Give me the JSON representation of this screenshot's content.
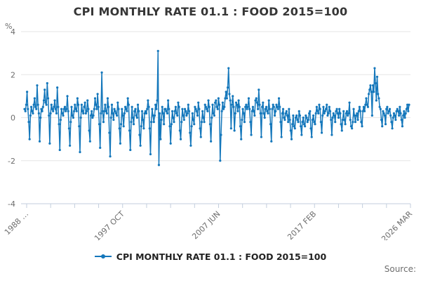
{
  "title": "CPI MONTHLY RATE 01.1 : FOOD 2015=100",
  "legend": {
    "label": "CPI MONTHLY RATE 01.1 : FOOD 2015=100"
  },
  "source_label": "Source:",
  "colors": {
    "line": "#1477bb",
    "grid": "#e6e6e6",
    "axis": "#c3cedd",
    "tick_text": "#6d6d6d",
    "title_text": "#363636",
    "legend_text": "#222222"
  },
  "chart_data": {
    "type": "line",
    "title": "CPI MONTHLY RATE 01.1 : FOOD 2015=100",
    "xlabel": "",
    "ylabel": "%",
    "ylim": [
      -4,
      4
    ],
    "y_ticks": [
      4,
      2,
      0,
      -2,
      -4
    ],
    "x_tick_labels": [
      "1988 …",
      "1997 OCT",
      "2007 JUN",
      "2017 FEB",
      "2026 MAR"
    ],
    "x_start": "1988 JAN",
    "x_end": "2026 MAR",
    "frequency": "monthly",
    "grid": true,
    "legend_position": "bottom",
    "marker": "circle",
    "series": [
      {
        "name": "CPI MONTHLY RATE 01.1 : FOOD 2015=100",
        "values": [
          0.4,
          0.3,
          0.6,
          1.2,
          0.4,
          -0.2,
          -1.0,
          0.1,
          0.5,
          0.3,
          0.2,
          0.6,
          0.9,
          0.5,
          0.4,
          1.5,
          0.6,
          0.2,
          -1.1,
          0.0,
          0.4,
          0.3,
          0.5,
          0.8,
          1.3,
          0.7,
          0.6,
          1.6,
          0.9,
          0.1,
          -1.2,
          0.2,
          0.6,
          0.4,
          0.3,
          0.5,
          0.8,
          0.4,
          0.2,
          1.4,
          0.5,
          -0.3,
          -1.5,
          -0.1,
          0.4,
          0.2,
          0.1,
          0.4,
          0.5,
          0.3,
          0.4,
          1.0,
          0.3,
          -0.5,
          -1.3,
          -0.2,
          0.5,
          0.1,
          0.0,
          0.3,
          0.6,
          0.4,
          0.3,
          0.9,
          0.6,
          -0.4,
          -1.6,
          0.0,
          0.6,
          0.3,
          0.2,
          0.5,
          0.7,
          0.2,
          0.3,
          0.8,
          0.4,
          -0.6,
          -1.1,
          0.1,
          0.3,
          0.0,
          0.1,
          0.4,
          0.9,
          0.6,
          0.4,
          1.1,
          0.5,
          -0.3,
          -1.4,
          0.2,
          2.1,
          0.3,
          -0.2,
          0.3,
          0.6,
          0.3,
          0.2,
          0.9,
          0.5,
          -0.7,
          -1.8,
          0.0,
          0.6,
          0.2,
          -0.1,
          0.4,
          0.3,
          0.2,
          0.1,
          0.7,
          0.4,
          -0.5,
          -1.2,
          -0.3,
          0.4,
          0.1,
          -0.4,
          0.2,
          0.5,
          0.4,
          0.3,
          0.9,
          0.6,
          -0.6,
          -1.5,
          -0.2,
          0.5,
          0.0,
          -0.3,
          0.3,
          0.4,
          0.1,
          0.0,
          0.6,
          0.3,
          -0.8,
          -1.3,
          -0.4,
          0.3,
          -0.1,
          -0.5,
          0.2,
          0.3,
          0.2,
          0.4,
          0.8,
          0.5,
          -0.5,
          -1.7,
          -0.2,
          0.4,
          0.1,
          -0.2,
          0.1,
          0.6,
          0.4,
          0.8,
          3.1,
          -2.2,
          0.2,
          -1.0,
          -0.1,
          0.5,
          0.2,
          -0.3,
          0.4,
          0.4,
          0.3,
          0.2,
          0.8,
          0.4,
          -0.4,
          -1.2,
          -0.3,
          0.3,
          0.0,
          -0.2,
          0.3,
          0.5,
          0.2,
          0.1,
          0.7,
          0.5,
          -0.6,
          -1.0,
          -0.2,
          0.4,
          0.1,
          -0.1,
          0.4,
          0.3,
          0.1,
          0.2,
          0.6,
          0.3,
          -0.7,
          -1.3,
          -0.4,
          0.2,
          -0.1,
          -0.3,
          0.5,
          0.4,
          0.3,
          0.1,
          0.7,
          0.4,
          -0.5,
          -0.9,
          -0.2,
          0.3,
          0.0,
          -0.2,
          0.6,
          0.5,
          0.4,
          0.3,
          0.8,
          0.5,
          -0.3,
          -1.1,
          0.0,
          0.6,
          0.2,
          0.1,
          0.7,
          0.8,
          0.5,
          0.4,
          0.9,
          0.6,
          -2.0,
          -0.8,
          0.3,
          0.7,
          0.4,
          0.5,
          0.9,
          1.2,
          0.9,
          1.4,
          2.3,
          1.1,
          0.8,
          -0.5,
          0.6,
          1.0,
          0.5,
          -0.6,
          0.2,
          0.7,
          0.6,
          0.3,
          0.8,
          0.5,
          -0.4,
          -1.0,
          -0.1,
          0.4,
          0.2,
          -0.2,
          0.5,
          0.6,
          0.4,
          0.5,
          0.9,
          0.4,
          -0.2,
          -0.8,
          0.3,
          0.5,
          0.3,
          0.1,
          0.8,
          0.9,
          0.7,
          0.4,
          1.3,
          0.6,
          0.2,
          -0.9,
          0.5,
          0.7,
          0.2,
          0.0,
          0.4,
          0.5,
          0.3,
          0.2,
          0.8,
          0.4,
          -0.3,
          -1.1,
          0.4,
          0.6,
          0.5,
          0.1,
          0.3,
          0.6,
          0.5,
          0.4,
          0.9,
          0.5,
          -0.2,
          -0.9,
          0.2,
          0.4,
          0.0,
          -0.1,
          0.2,
          0.3,
          0.1,
          -0.2,
          0.4,
          -0.1,
          -0.6,
          -1.0,
          -0.3,
          0.1,
          -0.4,
          -0.5,
          0.0,
          0.1,
          -0.1,
          -0.2,
          0.3,
          0.1,
          -0.4,
          -0.8,
          -0.2,
          0.0,
          -0.3,
          -0.4,
          0.1,
          0.0,
          -0.2,
          -0.1,
          0.2,
          0.3,
          -0.5,
          -0.9,
          -0.1,
          0.1,
          -0.2,
          -0.3,
          0.2,
          0.5,
          0.3,
          0.2,
          0.6,
          0.4,
          -0.2,
          -0.7,
          0.1,
          0.5,
          0.2,
          0.3,
          0.4,
          0.6,
          0.1,
          0.2,
          0.5,
          0.3,
          -0.1,
          -0.8,
          0.0,
          0.2,
          0.1,
          -0.2,
          0.3,
          0.4,
          0.2,
          0.0,
          0.4,
          0.2,
          -0.3,
          -0.6,
          -0.1,
          0.3,
          -0.1,
          -0.3,
          0.2,
          0.3,
          0.1,
          0.2,
          0.7,
          -0.1,
          -0.4,
          -0.5,
          -0.2,
          0.4,
          0.1,
          -0.2,
          0.1,
          0.2,
          -0.1,
          0.3,
          0.5,
          0.3,
          -0.2,
          -0.4,
          0.3,
          0.5,
          0.3,
          0.6,
          0.9,
          0.6,
          0.5,
          1.1,
          1.3,
          1.5,
          1.2,
          0.1,
          1.5,
          1.2,
          2.3,
          1.6,
          0.8,
          1.9,
          1.1,
          0.9,
          0.5,
          0.4,
          -0.1,
          -0.4,
          0.3,
          0.2,
          0.1,
          -0.3,
          0.4,
          0.5,
          0.2,
          0.3,
          0.4,
          0.1,
          -0.2,
          -0.5,
          0.0,
          0.2,
          0.1,
          -0.1,
          0.3,
          0.4,
          0.3,
          0.1,
          0.5,
          0.2,
          -0.1,
          -0.4,
          0.1,
          0.3,
          0.0,
          0.2,
          0.4,
          0.6,
          0.3,
          0.6
        ]
      }
    ]
  }
}
